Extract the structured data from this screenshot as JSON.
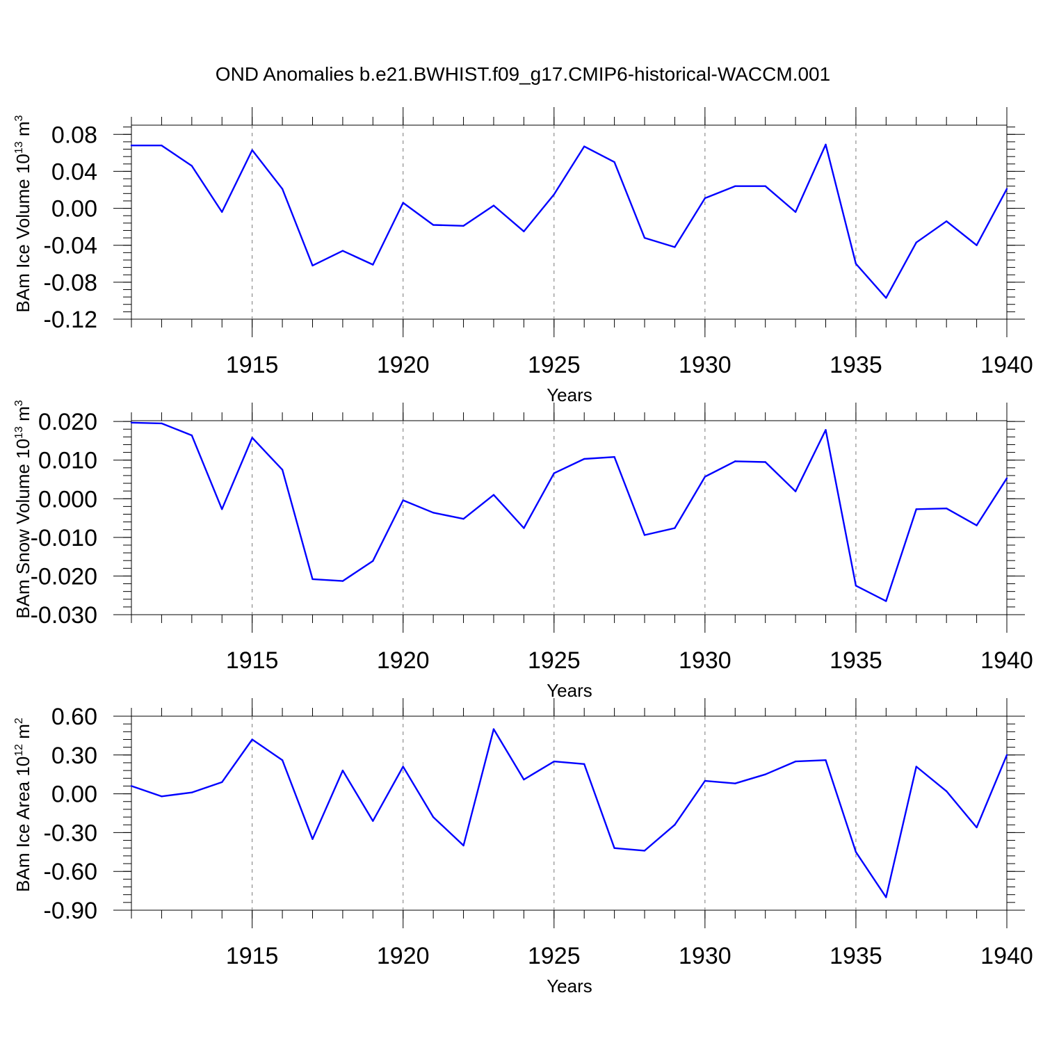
{
  "title": "OND Anomalies b.e21.BWHIST.f09_g17.CMIP6-historical-WACCM.001",
  "line_color": "#0000ff",
  "chart_data": [
    {
      "type": "line",
      "ylabel": {
        "text": "BAm Ice Volume 10",
        "exp": "13",
        "unit": " m",
        "unit_exp": "3"
      },
      "xlabel": "Years",
      "xlim": [
        1911,
        1940
      ],
      "ylim": [
        -0.12,
        0.09
      ],
      "x_ticks": [
        1915,
        1920,
        1925,
        1930,
        1935,
        1940
      ],
      "y_ticks": [
        "0.08",
        "0.04",
        "0.00",
        "-0.04",
        "-0.08",
        "-0.12"
      ],
      "grid": "dashed vertical lines at labeled years",
      "x": [
        1911,
        1912,
        1913,
        1914,
        1915,
        1916,
        1917,
        1918,
        1919,
        1920,
        1921,
        1922,
        1923,
        1924,
        1925,
        1926,
        1927,
        1928,
        1929,
        1930,
        1931,
        1932,
        1933,
        1934,
        1935,
        1936,
        1937,
        1938,
        1939,
        1940
      ],
      "y": [
        0.068,
        0.068,
        0.046,
        -0.004,
        0.063,
        0.021,
        -0.062,
        -0.046,
        -0.061,
        0.006,
        -0.018,
        -0.019,
        0.003,
        -0.025,
        0.015,
        0.067,
        0.05,
        -0.032,
        -0.042,
        0.011,
        0.024,
        0.024,
        -0.004,
        0.069,
        -0.06,
        -0.097,
        -0.037,
        -0.014,
        -0.04,
        0.021
      ]
    },
    {
      "type": "line",
      "ylabel": {
        "text": "BAm Snow Volume 10",
        "exp": "13",
        "unit": " m",
        "unit_exp": "3"
      },
      "xlabel": "Years",
      "xlim": [
        1911,
        1940
      ],
      "ylim": [
        -0.03,
        0.0202
      ],
      "x_ticks": [
        1915,
        1920,
        1925,
        1930,
        1935,
        1940
      ],
      "y_ticks": [
        "0.020",
        "0.010",
        "0.000",
        "-0.010",
        "-0.020",
        "-0.030"
      ],
      "grid": "dashed vertical lines at labeled years",
      "x": [
        1911,
        1912,
        1913,
        1914,
        1915,
        1916,
        1917,
        1918,
        1919,
        1920,
        1921,
        1922,
        1923,
        1924,
        1925,
        1926,
        1927,
        1928,
        1929,
        1930,
        1931,
        1932,
        1933,
        1934,
        1935,
        1936,
        1937,
        1938,
        1939,
        1940
      ],
      "y": [
        0.0197,
        0.0195,
        0.0164,
        -0.0027,
        0.0158,
        0.0075,
        -0.0208,
        -0.0213,
        -0.0161,
        -0.0004,
        -0.0036,
        -0.0052,
        0.001,
        -0.0076,
        0.0066,
        0.0103,
        0.0108,
        -0.0094,
        -0.0076,
        0.0057,
        0.0097,
        0.0095,
        0.0019,
        0.0178,
        -0.0225,
        -0.0265,
        -0.0027,
        -0.0025,
        -0.0069,
        0.0053
      ]
    },
    {
      "type": "line",
      "ylabel": {
        "text": "BAm Ice Area 10",
        "exp": "12",
        "unit": " m",
        "unit_exp": "2"
      },
      "xlabel": "Years",
      "xlim": [
        1911,
        1940
      ],
      "ylim": [
        -0.9,
        0.6
      ],
      "x_ticks": [
        1915,
        1920,
        1925,
        1930,
        1935,
        1940
      ],
      "y_ticks": [
        "0.60",
        "0.30",
        "0.00",
        "-0.30",
        "-0.60",
        "-0.90"
      ],
      "grid": "dashed vertical lines at labeled years",
      "x": [
        1911,
        1912,
        1913,
        1914,
        1915,
        1916,
        1917,
        1918,
        1919,
        1920,
        1921,
        1922,
        1923,
        1924,
        1925,
        1926,
        1927,
        1928,
        1929,
        1930,
        1931,
        1932,
        1933,
        1934,
        1935,
        1936,
        1937,
        1938,
        1939,
        1940
      ],
      "y": [
        0.06,
        -0.02,
        0.01,
        0.09,
        0.42,
        0.26,
        -0.35,
        0.18,
        -0.21,
        0.21,
        -0.18,
        -0.4,
        0.5,
        0.11,
        0.25,
        0.23,
        -0.42,
        -0.44,
        -0.24,
        0.1,
        0.08,
        0.15,
        0.25,
        0.26,
        -0.45,
        -0.8,
        0.21,
        0.02,
        -0.26,
        0.3
      ]
    }
  ]
}
